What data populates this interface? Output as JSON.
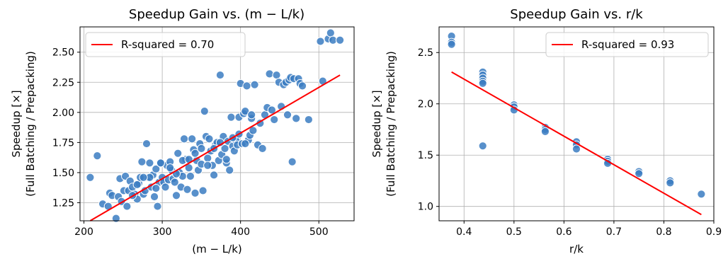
{
  "chart_data": [
    {
      "type": "scatter",
      "title": "Speedup Gain vs. (m − L/k)",
      "xlabel": "(m − L/k)",
      "ylabel_line1": "Speedup [×]",
      "ylabel_line2": "(Full Batching / Prepacking)",
      "xlim": [
        195,
        545
      ],
      "ylim": [
        1.1,
        2.71
      ],
      "xticks": [
        200,
        300,
        400,
        500
      ],
      "yticks": [
        1.25,
        1.5,
        1.75,
        2.0,
        2.25,
        2.5
      ],
      "xtick_labels": [
        "200",
        "300",
        "400",
        "500"
      ],
      "ytick_labels": [
        "1.25",
        "1.50",
        "1.75",
        "2.00",
        "2.25",
        "2.50"
      ],
      "grid": true,
      "legend_label": "R-squared = 0.70",
      "legend_position": "top-left",
      "regression": {
        "x": [
          208,
          527
        ],
        "y": [
          1.1,
          2.31
        ]
      },
      "marker_color": "#3b7dc2",
      "line_color": "#ff0000",
      "points": [
        [
          208,
          1.46
        ],
        [
          217,
          1.64
        ],
        [
          224,
          1.24
        ],
        [
          231,
          1.22
        ],
        [
          233,
          1.33
        ],
        [
          236,
          1.31
        ],
        [
          241,
          1.12
        ],
        [
          244,
          1.3
        ],
        [
          246,
          1.45
        ],
        [
          248,
          1.26
        ],
        [
          251,
          1.35
        ],
        [
          253,
          1.47
        ],
        [
          255,
          1.22
        ],
        [
          257,
          1.35
        ],
        [
          259,
          1.43
        ],
        [
          262,
          1.38
        ],
        [
          265,
          1.32
        ],
        [
          268,
          1.28
        ],
        [
          270,
          1.41
        ],
        [
          272,
          1.46
        ],
        [
          274,
          1.59
        ],
        [
          276,
          1.32
        ],
        [
          278,
          1.35
        ],
        [
          280,
          1.74
        ],
        [
          282,
          1.46
        ],
        [
          284,
          1.58
        ],
        [
          286,
          1.38
        ],
        [
          288,
          1.48
        ],
        [
          290,
          1.3
        ],
        [
          292,
          1.53
        ],
        [
          294,
          1.22
        ],
        [
          296,
          1.42
        ],
        [
          298,
          1.58
        ],
        [
          300,
          1.46
        ],
        [
          302,
          1.42
        ],
        [
          304,
          1.38
        ],
        [
          306,
          1.56
        ],
        [
          308,
          1.44
        ],
        [
          310,
          1.59
        ],
        [
          312,
          1.52
        ],
        [
          314,
          1.45
        ],
        [
          316,
          1.42
        ],
        [
          318,
          1.31
        ],
        [
          320,
          1.66
        ],
        [
          322,
          1.5
        ],
        [
          324,
          1.38
        ],
        [
          326,
          1.47
        ],
        [
          328,
          1.78
        ],
        [
          330,
          1.61
        ],
        [
          332,
          1.36
        ],
        [
          334,
          1.54
        ],
        [
          336,
          1.47
        ],
        [
          338,
          1.78
        ],
        [
          340,
          1.69
        ],
        [
          342,
          1.33
        ],
        [
          344,
          1.6
        ],
        [
          346,
          1.52
        ],
        [
          348,
          1.74
        ],
        [
          350,
          1.57
        ],
        [
          352,
          1.35
        ],
        [
          354,
          2.01
        ],
        [
          356,
          1.8
        ],
        [
          358,
          1.62
        ],
        [
          360,
          1.78
        ],
        [
          362,
          1.68
        ],
        [
          364,
          1.56
        ],
        [
          366,
          1.48
        ],
        [
          368,
          1.73
        ],
        [
          370,
          1.75
        ],
        [
          372,
          1.6
        ],
        [
          374,
          2.31
        ],
        [
          376,
          1.65
        ],
        [
          378,
          1.8
        ],
        [
          380,
          1.7
        ],
        [
          382,
          1.58
        ],
        [
          384,
          1.76
        ],
        [
          386,
          1.52
        ],
        [
          388,
          1.96
        ],
        [
          390,
          1.72
        ],
        [
          392,
          1.68
        ],
        [
          394,
          1.77
        ],
        [
          396,
          1.73
        ],
        [
          398,
          1.96
        ],
        [
          400,
          2.24
        ],
        [
          402,
          1.74
        ],
        [
          404,
          1.99
        ],
        [
          406,
          2.01
        ],
        [
          408,
          2.22
        ],
        [
          410,
          1.77
        ],
        [
          412,
          1.81
        ],
        [
          414,
          1.95
        ],
        [
          416,
          1.85
        ],
        [
          418,
          2.23
        ],
        [
          422,
          1.73
        ],
        [
          425,
          1.91
        ],
        [
          428,
          1.7
        ],
        [
          431,
          1.98
        ],
        [
          434,
          2.04
        ],
        [
          437,
          2.32
        ],
        [
          440,
          2.02
        ],
        [
          443,
          1.94
        ],
        [
          446,
          2.31
        ],
        [
          449,
          2.25
        ],
        [
          452,
          2.05
        ],
        [
          455,
          2.23
        ],
        [
          458,
          2.25
        ],
        [
          460,
          1.98
        ],
        [
          462,
          2.27
        ],
        [
          464,
          2.29
        ],
        [
          466,
          1.59
        ],
        [
          468,
          2.28
        ],
        [
          471,
          1.95
        ],
        [
          474,
          2.28
        ],
        [
          476,
          2.24
        ],
        [
          479,
          2.22
        ],
        [
          487,
          1.94
        ],
        [
          502,
          2.59
        ],
        [
          505,
          2.26
        ],
        [
          512,
          2.61
        ],
        [
          515,
          2.66
        ],
        [
          518,
          2.6
        ],
        [
          527,
          2.6
        ],
        [
          298,
          1.58
        ],
        [
          310,
          1.54
        ],
        [
          318,
          1.49
        ],
        [
          326,
          1.6
        ],
        [
          334,
          1.61
        ],
        [
          342,
          1.66
        ],
        [
          350,
          1.7
        ],
        [
          358,
          1.56
        ],
        [
          366,
          1.7
        ],
        [
          374,
          1.75
        ],
        [
          382,
          1.61
        ],
        [
          390,
          1.79
        ],
        [
          398,
          1.82
        ],
        [
          406,
          1.74
        ],
        [
          414,
          1.98
        ],
        [
          292,
          1.37
        ],
        [
          284,
          1.46
        ],
        [
          276,
          1.46
        ],
        [
          268,
          1.4
        ],
        [
          262,
          1.31
        ]
      ]
    },
    {
      "type": "scatter",
      "title": "Speedup Gain vs. r/k",
      "xlabel": "r/k",
      "ylabel_line1": "Speedup [×]",
      "ylabel_line2": "(Full Batching / Prepacking)",
      "xlim": [
        0.35,
        0.9
      ],
      "ylim": [
        0.86,
        2.75
      ],
      "xticks": [
        0.4,
        0.5,
        0.6,
        0.7,
        0.8,
        0.9
      ],
      "yticks": [
        1.0,
        1.5,
        2.0,
        2.5
      ],
      "xtick_labels": [
        "0.4",
        "0.5",
        "0.6",
        "0.7",
        "0.8",
        "0.9"
      ],
      "ytick_labels": [
        "1.0",
        "1.5",
        "2.0",
        "2.5"
      ],
      "grid": true,
      "legend_label": "R-squared = 0.93",
      "legend_position": "top-right",
      "regression": {
        "x": [
          0.375,
          0.875
        ],
        "y": [
          2.31,
          0.92
        ]
      },
      "marker_color": "#3b7dc2",
      "line_color": "#ff0000",
      "points": [
        [
          0.375,
          2.66
        ],
        [
          0.375,
          2.6
        ],
        [
          0.375,
          2.58
        ],
        [
          0.4375,
          2.31
        ],
        [
          0.4375,
          2.28
        ],
        [
          0.4375,
          2.25
        ],
        [
          0.4375,
          2.22
        ],
        [
          0.4375,
          2.2
        ],
        [
          0.4375,
          1.59
        ],
        [
          0.5,
          1.99
        ],
        [
          0.5,
          1.97
        ],
        [
          0.5,
          1.94
        ],
        [
          0.5625,
          1.77
        ],
        [
          0.5625,
          1.75
        ],
        [
          0.5625,
          1.73
        ],
        [
          0.625,
          1.63
        ],
        [
          0.625,
          1.6
        ],
        [
          0.625,
          1.56
        ],
        [
          0.6875,
          1.46
        ],
        [
          0.6875,
          1.44
        ],
        [
          0.6875,
          1.42
        ],
        [
          0.75,
          1.34
        ],
        [
          0.75,
          1.32
        ],
        [
          0.8125,
          1.25
        ],
        [
          0.8125,
          1.23
        ],
        [
          0.875,
          1.12
        ]
      ]
    }
  ]
}
